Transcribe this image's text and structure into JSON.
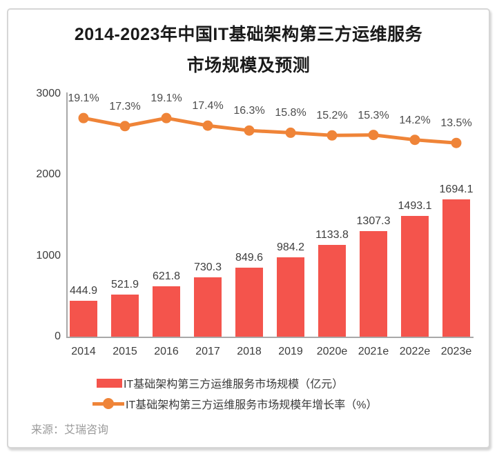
{
  "title": {
    "line1": "2014-2023年中国IT基础架构第三方运维服务",
    "line2": "市场规模及预测"
  },
  "source": "来源：艾瑞咨询",
  "colors": {
    "bar": "#f4544c",
    "line": "#ef8438",
    "axis": "#a8a8a8",
    "title_text": "#1a1a1a",
    "label_text": "#3d3d3d",
    "source_text": "#9a9a9a"
  },
  "chart_data": {
    "type": "bar+line",
    "title": "2014-2023年中国IT基础架构第三方运维服务市场规模及预测",
    "categories": [
      "2014",
      "2015",
      "2016",
      "2017",
      "2018",
      "2019",
      "2020e",
      "2021e",
      "2022e",
      "2023e"
    ],
    "series": [
      {
        "name": "IT基础架构第三方运维服务市场规模（亿元）",
        "type": "bar",
        "unit": "亿元",
        "color": "#f4544c",
        "values": [
          444.9,
          521.9,
          621.8,
          730.3,
          849.6,
          984.2,
          1133.8,
          1307.3,
          1493.1,
          1694.1
        ]
      },
      {
        "name": "IT基础架构第三方运维服务市场规模年增长率（%）",
        "type": "line",
        "unit": "%",
        "color": "#ef8438",
        "values": [
          19.1,
          17.3,
          19.1,
          17.4,
          16.3,
          15.8,
          15.2,
          15.3,
          14.2,
          13.5
        ]
      }
    ],
    "y_axis": {
      "ticks": [
        0,
        1000,
        2000,
        3000
      ],
      "min": 0,
      "max": 3000,
      "label": ""
    },
    "secondary_axis_visible": false,
    "grid": false,
    "legend_position": "bottom",
    "data_labels": true
  }
}
